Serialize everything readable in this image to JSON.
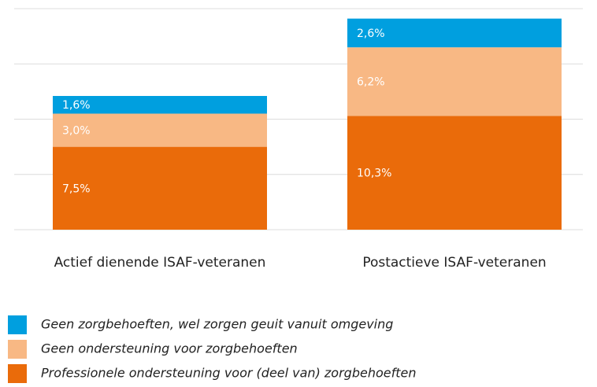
{
  "chart_data": {
    "type": "stacked_bar",
    "categories": [
      "Actief dienende ISAF-veteranen",
      "Postactieve ISAF-veteranen"
    ],
    "series": [
      {
        "name": "Geen zorgbehoeften, wel zorgen geuit vanuit omgeving",
        "color": "#009fdf",
        "values": [
          1.6,
          2.6
        ],
        "value_labels": [
          "1,6%",
          "2,6%"
        ]
      },
      {
        "name": "Geen ondersteuning voor zorgbehoeften",
        "color": "#f8b884",
        "values": [
          3.0,
          6.2
        ],
        "value_labels": [
          "3,0%",
          "6,2%"
        ]
      },
      {
        "name": "Professionele ondersteuning voor (deel van) zorgbehoeften",
        "color": "#ea6b0a",
        "values": [
          7.5,
          10.3
        ],
        "value_labels": [
          "7,5%",
          "10,3%"
        ]
      }
    ],
    "ylim": [
      0,
      20
    ],
    "yticks": [
      0,
      5,
      10,
      15,
      20
    ],
    "grid": true,
    "legend": "bottom"
  }
}
